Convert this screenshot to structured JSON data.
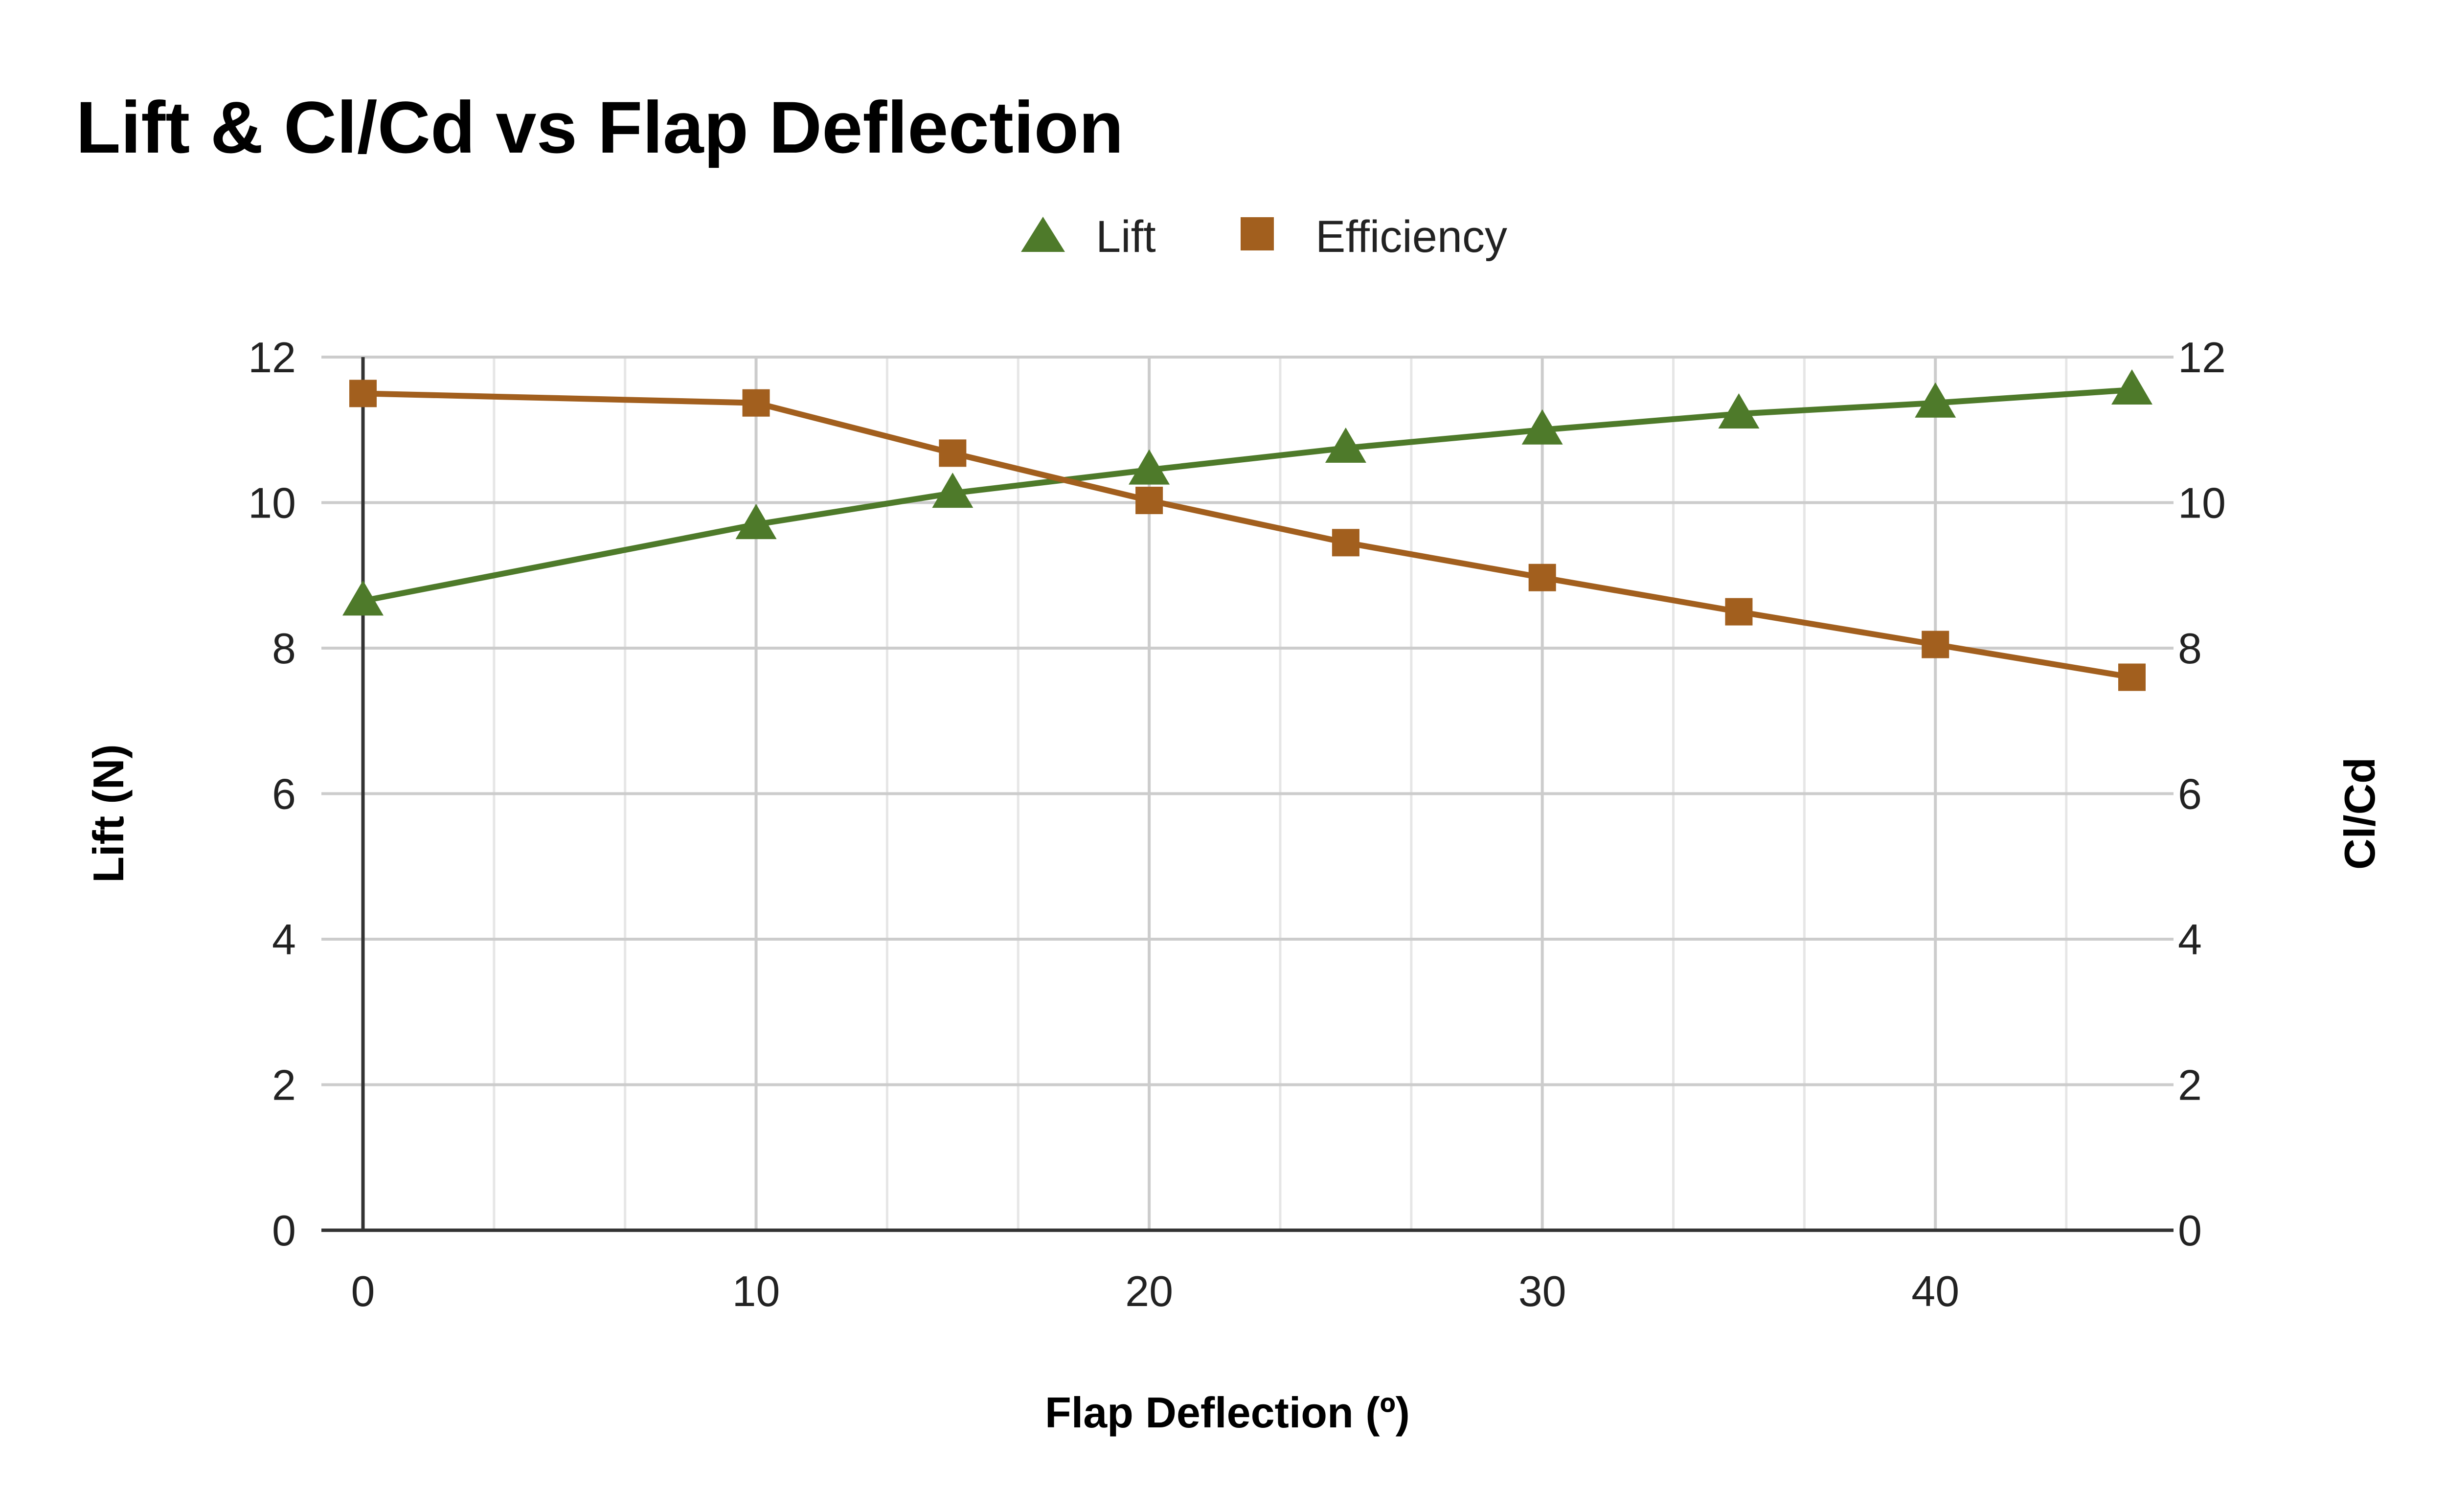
{
  "chart_data": {
    "type": "line",
    "title": "Lift & Cl/Cd vs Flap Deflection",
    "xlabel": "Flap Deflection (º)",
    "ylabel_left": "Lift (N)",
    "ylabel_right": "Cl/Cd",
    "xlim": [
      0,
      45
    ],
    "ylim_left": [
      0,
      12
    ],
    "ylim_right": [
      0,
      12
    ],
    "x_ticks": [
      "0",
      "10",
      "20",
      "30",
      "40"
    ],
    "x_tick_values": [
      0,
      10,
      20,
      30,
      40
    ],
    "y_ticks_left": [
      "0",
      "2",
      "4",
      "6",
      "8",
      "10",
      "12"
    ],
    "y_ticks_right": [
      "0",
      "2",
      "4",
      "6",
      "8",
      "10",
      "12"
    ],
    "y_tick_values": [
      0,
      2,
      4,
      6,
      8,
      10,
      12
    ],
    "grid": true,
    "legend_position": "top-center",
    "series": [
      {
        "name": "Lift",
        "axis": "left",
        "marker": "triangle",
        "color": "#4e7a2a",
        "x": [
          0,
          10,
          15,
          20,
          25,
          30,
          35,
          40,
          45
        ],
        "values": [
          8.65,
          9.7,
          10.13,
          10.45,
          10.75,
          11.0,
          11.22,
          11.37,
          11.55
        ]
      },
      {
        "name": "Efficiency",
        "axis": "right",
        "marker": "square",
        "color": "#a25f1e",
        "x": [
          0,
          10,
          15,
          20,
          25,
          30,
          35,
          40,
          45
        ],
        "values": [
          11.5,
          11.37,
          10.68,
          10.03,
          9.45,
          8.97,
          8.5,
          8.05,
          7.6
        ]
      }
    ]
  }
}
